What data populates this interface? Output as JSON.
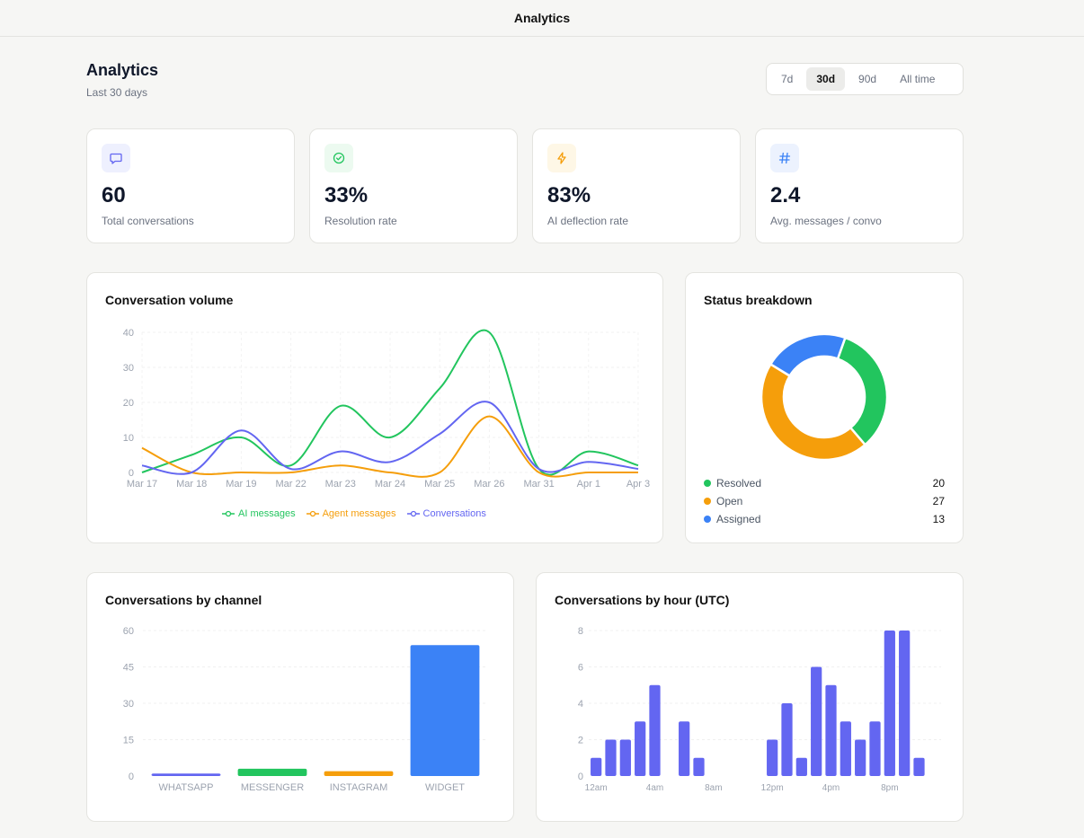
{
  "topbar": {
    "title": "Analytics"
  },
  "header": {
    "title": "Analytics",
    "subtitle": "Last 30 days"
  },
  "range": {
    "options": [
      "7d",
      "30d",
      "90d",
      "All time"
    ],
    "selected": "30d"
  },
  "stats": [
    {
      "value": "60",
      "label": "Total conversations",
      "icon": "chat-bubble-icon",
      "color": "#6366f1"
    },
    {
      "value": "33%",
      "label": "Resolution rate",
      "icon": "check-circle-icon",
      "color": "#22c55e"
    },
    {
      "value": "83%",
      "label": "AI deflection rate",
      "icon": "lightning-bolt-icon",
      "color": "#f59e0b"
    },
    {
      "value": "2.4",
      "label": "Avg. messages / convo",
      "icon": "hash-icon",
      "color": "#3b82f6"
    }
  ],
  "volume": {
    "title": "Conversation volume",
    "chart_data": {
      "type": "line",
      "x": [
        "Mar 17",
        "Mar 18",
        "Mar 19",
        "Mar 22",
        "Mar 23",
        "Mar 24",
        "Mar 25",
        "Mar 26",
        "Mar 31",
        "Apr 1",
        "Apr 3"
      ],
      "ylim": [
        0,
        40
      ],
      "yticks": [
        0,
        10,
        20,
        30,
        40
      ],
      "series": [
        {
          "name": "AI messages",
          "color": "#22c55e",
          "values": [
            0,
            5,
            10,
            2,
            19,
            10,
            24,
            40,
            1,
            6,
            2
          ]
        },
        {
          "name": "Agent messages",
          "color": "#f59e0b",
          "values": [
            7,
            0,
            0,
            0,
            2,
            0,
            0,
            16,
            0,
            0,
            0
          ]
        },
        {
          "name": "Conversations",
          "color": "#6366f1",
          "values": [
            2,
            0,
            12,
            1,
            6,
            3,
            11,
            20,
            1,
            3,
            1
          ]
        }
      ]
    }
  },
  "status": {
    "title": "Status breakdown",
    "items": [
      {
        "name": "Resolved",
        "count": "20",
        "value": 20,
        "color": "#22c55e"
      },
      {
        "name": "Open",
        "count": "27",
        "value": 27,
        "color": "#f59e0b"
      },
      {
        "name": "Assigned",
        "count": "13",
        "value": 13,
        "color": "#3b82f6"
      }
    ]
  },
  "channel": {
    "title": "Conversations by channel",
    "chart_data": {
      "type": "bar",
      "categories": [
        "WHATSAPP",
        "MESSENGER",
        "INSTAGRAM",
        "WIDGET"
      ],
      "values": [
        1,
        3,
        2,
        54
      ],
      "colors": [
        "#6366f1",
        "#22c55e",
        "#f59e0b",
        "#3b82f6"
      ],
      "ylim": [
        0,
        60
      ],
      "yticks": [
        0,
        15,
        30,
        45,
        60
      ]
    }
  },
  "hourly": {
    "title": "Conversations by hour (UTC)",
    "chart_data": {
      "type": "bar",
      "x": [
        0,
        1,
        2,
        3,
        4,
        5,
        6,
        7,
        8,
        9,
        10,
        11,
        12,
        13,
        14,
        15,
        16,
        17,
        18,
        19,
        20,
        21,
        22,
        23
      ],
      "values": [
        1,
        2,
        2,
        3,
        5,
        0,
        3,
        1,
        0,
        0,
        0,
        0,
        2,
        4,
        1,
        6,
        5,
        3,
        2,
        3,
        8,
        8,
        1,
        0
      ],
      "xtick_labels": [
        "12am",
        "4am",
        "8am",
        "12pm",
        "4pm",
        "8pm"
      ],
      "xtick_positions": [
        0,
        4,
        8,
        12,
        16,
        20
      ],
      "ylim": [
        0,
        8
      ],
      "yticks": [
        0,
        2,
        4,
        6,
        8
      ],
      "color": "#6366f1"
    }
  }
}
